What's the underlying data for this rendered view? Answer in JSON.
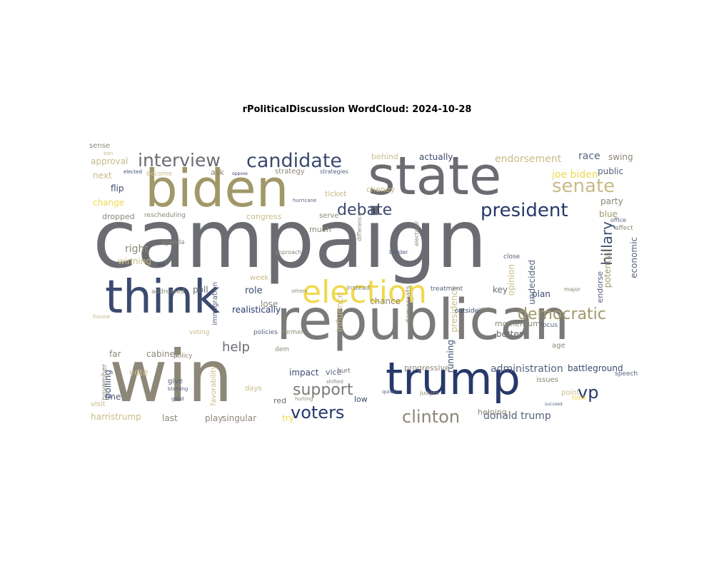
{
  "title": "rPoliticalDiscussion WordCloud: 2024-10-28",
  "colormap": [
    "#6b6c72",
    "#a09868",
    "#27386b",
    "#efd94c",
    "#8c8777",
    "#c8bb86",
    "#56617e",
    "#b0ae9d"
  ],
  "words": [
    {
      "text": "campaign",
      "color": "#6b6c72",
      "rot": 0
    },
    {
      "text": "state",
      "color": "#6b6c72",
      "rot": 0
    },
    {
      "text": "biden",
      "color": "#a09868",
      "rot": 0
    },
    {
      "text": "think",
      "color": "#3b4a6e",
      "rot": 0
    },
    {
      "text": "republican",
      "color": "#7a7a78",
      "rot": 0
    },
    {
      "text": "win",
      "color": "#8c8777",
      "rot": 0
    },
    {
      "text": "trump",
      "color": "#27386b",
      "rot": 0
    },
    {
      "text": "election",
      "color": "#efd94c",
      "rot": 0
    },
    {
      "text": "candidate",
      "color": "#3b4a6e",
      "rot": 0
    },
    {
      "text": "interview",
      "color": "#6b6c72",
      "rot": 0
    },
    {
      "text": "president",
      "color": "#27386b",
      "rot": 0
    },
    {
      "text": "senate",
      "color": "#c8bb86",
      "rot": 0
    },
    {
      "text": "debate",
      "color": "#3b4a6e",
      "rot": 0
    },
    {
      "text": "democratic",
      "color": "#a09868",
      "rot": 0
    },
    {
      "text": "hillary",
      "color": "#3b4a6e",
      "rot": -90
    },
    {
      "text": "voters",
      "color": "#27386b",
      "rot": 0
    },
    {
      "text": "clinton",
      "color": "#8c8777",
      "rot": 0
    },
    {
      "text": "support",
      "color": "#7a7a78",
      "rot": 0
    },
    {
      "text": "vp",
      "color": "#27386b",
      "rot": 0
    },
    {
      "text": "help",
      "color": "#6b6c72",
      "rot": 0
    },
    {
      "text": "donald trump",
      "color": "#56617e",
      "rot": 0
    },
    {
      "text": "administration",
      "color": "#56617e",
      "rot": 0
    },
    {
      "text": "endorsement",
      "color": "#c8bb86",
      "rot": 0
    },
    {
      "text": "joe biden",
      "color": "#efd94c",
      "rot": 0
    },
    {
      "text": "race",
      "color": "#56617e",
      "rot": 0
    },
    {
      "text": "swing",
      "color": "#8c8777",
      "rot": 0
    },
    {
      "text": "public",
      "color": "#56617e",
      "rot": 0
    },
    {
      "text": "party",
      "color": "#8c8777",
      "rot": 0
    },
    {
      "text": "blue",
      "color": "#a09868",
      "rot": 0
    },
    {
      "text": "affect",
      "color": "#8c8777",
      "rot": 0
    },
    {
      "text": "potential",
      "color": "#a09868",
      "rot": -90
    },
    {
      "text": "economic",
      "color": "#56617e",
      "rot": -90
    },
    {
      "text": "plan",
      "color": "#3b4a6e",
      "rot": 0
    },
    {
      "text": "key",
      "color": "#6b6c72",
      "rot": 0
    },
    {
      "text": "actually",
      "color": "#3b4a6e",
      "rot": 0
    },
    {
      "text": "behind",
      "color": "#c8bb86",
      "rot": 0
    },
    {
      "text": "approval",
      "color": "#c8bb86",
      "rot": 0
    },
    {
      "text": "next",
      "color": "#c8bb86",
      "rot": 0
    },
    {
      "text": "flip",
      "color": "#3b4a6e",
      "rot": 0
    },
    {
      "text": "change",
      "color": "#efd94c",
      "rot": 0
    },
    {
      "text": "dropped",
      "color": "#8c8777",
      "rot": 0
    },
    {
      "text": "rescheduling",
      "color": "#8c8777",
      "rot": 0
    },
    {
      "text": "right",
      "color": "#8c8777",
      "rot": 0
    },
    {
      "text": "winning",
      "color": "#c8bb86",
      "rot": 0
    },
    {
      "text": "ask",
      "color": "#8c8777",
      "rot": 0
    },
    {
      "text": "strategy",
      "color": "#8c8777",
      "rot": 0
    },
    {
      "text": "strategies",
      "color": "#56617e",
      "rot": 0
    },
    {
      "text": "ticket",
      "color": "#c8bb86",
      "rot": 0
    },
    {
      "text": "cheney",
      "color": "#c8bb86",
      "rot": 0
    },
    {
      "text": "congress",
      "color": "#c8bb86",
      "rot": 0
    },
    {
      "text": "serve",
      "color": "#8c8777",
      "rot": 0
    },
    {
      "text": "much",
      "color": "#8c8777",
      "rot": 0
    },
    {
      "text": "immigration",
      "color": "#56617e",
      "rot": -90
    },
    {
      "text": "poll",
      "color": "#6b6c72",
      "rot": 0
    },
    {
      "text": "role",
      "color": "#3b4a6e",
      "rot": 0
    },
    {
      "text": "lose",
      "color": "#8c8777",
      "rot": 0
    },
    {
      "text": "realistically",
      "color": "#27386b",
      "rot": 0
    },
    {
      "text": "chance",
      "color": "#8c8777",
      "rot": 0
    },
    {
      "text": "influence",
      "color": "#c8bb86",
      "rot": -90
    },
    {
      "text": "presidency",
      "color": "#c8bb86",
      "rot": -90
    },
    {
      "text": "opinion",
      "color": "#c8bb86",
      "rot": -90
    },
    {
      "text": "undecided",
      "color": "#56617e",
      "rot": -90
    },
    {
      "text": "endorse",
      "color": "#56617e",
      "rot": -90
    },
    {
      "text": "momentum",
      "color": "#8c8777",
      "rot": 0
    },
    {
      "text": "better",
      "color": "#6b6c72",
      "rot": 0
    },
    {
      "text": "issues",
      "color": "#8c8777",
      "rot": 0
    },
    {
      "text": "point",
      "color": "#c8bb86",
      "rot": 0
    },
    {
      "text": "speech",
      "color": "#56617e",
      "rot": 0
    },
    {
      "text": "battleground",
      "color": "#3b4a6e",
      "rot": 0
    },
    {
      "text": "progressive",
      "color": "#8c8777",
      "rot": 0
    },
    {
      "text": "running",
      "color": "#3b4a6e",
      "rot": -90
    },
    {
      "text": "helping",
      "color": "#8c8777",
      "rot": 0
    },
    {
      "text": "impact",
      "color": "#3b4a6e",
      "rot": 0
    },
    {
      "text": "vice",
      "color": "#56617e",
      "rot": 0
    },
    {
      "text": "hurt",
      "color": "#6b6c72",
      "rot": 0
    },
    {
      "text": "red",
      "color": "#6b6c72",
      "rot": 0
    },
    {
      "text": "low",
      "color": "#3b4a6e",
      "rot": 0
    },
    {
      "text": "dem",
      "color": "#8c8777",
      "rot": 0
    },
    {
      "text": "cabinet",
      "color": "#8c8777",
      "rot": 0
    },
    {
      "text": "vote",
      "color": "#c8bb86",
      "rot": 0
    },
    {
      "text": "far",
      "color": "#8c8777",
      "rot": 0
    },
    {
      "text": "give",
      "color": "#56617e",
      "rot": 0
    },
    {
      "text": "polling",
      "color": "#3b4a6e",
      "rot": -90
    },
    {
      "text": "harristrump",
      "color": "#c8bb86",
      "rot": 0
    },
    {
      "text": "last",
      "color": "#8c8777",
      "rot": 0
    },
    {
      "text": "play",
      "color": "#8c8777",
      "rot": 0
    },
    {
      "text": "singular",
      "color": "#8c8777",
      "rot": 0
    },
    {
      "text": "try",
      "color": "#efd94c",
      "rot": 0
    },
    {
      "text": "favorability",
      "color": "#c8bb86",
      "rot": -90
    },
    {
      "text": "november",
      "color": "#8c8777",
      "rot": -90
    },
    {
      "text": "one",
      "color": "#56617e",
      "rot": 0
    },
    {
      "text": "days",
      "color": "#c8bb86",
      "rot": 0
    },
    {
      "text": "visit",
      "color": "#c8bb86",
      "rot": 0
    },
    {
      "text": "democrats",
      "color": "#8c8777",
      "rot": -90
    },
    {
      "text": "week",
      "color": "#c8bb86",
      "rot": 0
    },
    {
      "text": "voting",
      "color": "#c8bb86",
      "rot": 0
    },
    {
      "text": "policy",
      "color": "#8c8777",
      "rot": 0
    },
    {
      "text": "addressed",
      "color": "#8c8777",
      "rot": 0
    },
    {
      "text": "agenda",
      "color": "#8c8777",
      "rot": 0
    },
    {
      "text": "close",
      "color": "#56617e",
      "rot": 0
    },
    {
      "text": "border",
      "color": "#56617e",
      "rot": 0
    },
    {
      "text": "policies",
      "color": "#56617e",
      "rot": 0
    },
    {
      "text": "former",
      "color": "#8c8777",
      "rot": 0
    },
    {
      "text": "instead",
      "color": "#8c8777",
      "rot": 0
    },
    {
      "text": "treatment",
      "color": "#56617e",
      "rot": 0
    },
    {
      "text": "outside",
      "color": "#3b4a6e",
      "rot": 0
    },
    {
      "text": "focus",
      "color": "#56617e",
      "rot": 0
    },
    {
      "text": "age",
      "color": "#8c8777",
      "rot": 0
    },
    {
      "text": "time",
      "color": "#efd94c",
      "rot": 0
    },
    {
      "text": "become",
      "color": "#c8bb86",
      "rot": 0
    },
    {
      "text": "approach",
      "color": "#8c8777",
      "rot": 0
    },
    {
      "text": "electoral",
      "color": "#8c8777",
      "rot": -90
    },
    {
      "text": "difference",
      "color": "#8c8777",
      "rot": -90
    },
    {
      "text": "house",
      "color": "#c8bb86",
      "rot": 0
    },
    {
      "text": "major",
      "color": "#8c8777",
      "rot": 0
    },
    {
      "text": "office",
      "color": "#56617e",
      "rot": 0
    },
    {
      "text": "ban",
      "color": "#c8bb86",
      "rot": 0
    },
    {
      "text": "elected",
      "color": "#3b4a6e",
      "rot": 0
    },
    {
      "text": "oppose",
      "color": "#3b4a6e",
      "rot": 0
    },
    {
      "text": "hurricane",
      "color": "#56617e",
      "rot": 0
    },
    {
      "text": "aid",
      "color": "#3b4a6e",
      "rot": 0
    },
    {
      "text": "others",
      "color": "#8c8777",
      "rot": 0
    },
    {
      "text": "quickly",
      "color": "#56617e",
      "rot": 0
    },
    {
      "text": "judges",
      "color": "#8c8777",
      "rot": 0
    },
    {
      "text": "blaming",
      "color": "#56617e",
      "rot": 0
    },
    {
      "text": "good",
      "color": "#56617e",
      "rot": 0
    },
    {
      "text": "hurting",
      "color": "#8c8777",
      "rot": 0
    },
    {
      "text": "shifted",
      "color": "#8c8777",
      "rot": 0
    },
    {
      "text": "succeed",
      "color": "#56617e",
      "rot": 0
    },
    {
      "text": "relative",
      "color": "#8c8777",
      "rot": 0
    },
    {
      "text": "sense",
      "color": "#8c8777",
      "rot": 0
    }
  ]
}
